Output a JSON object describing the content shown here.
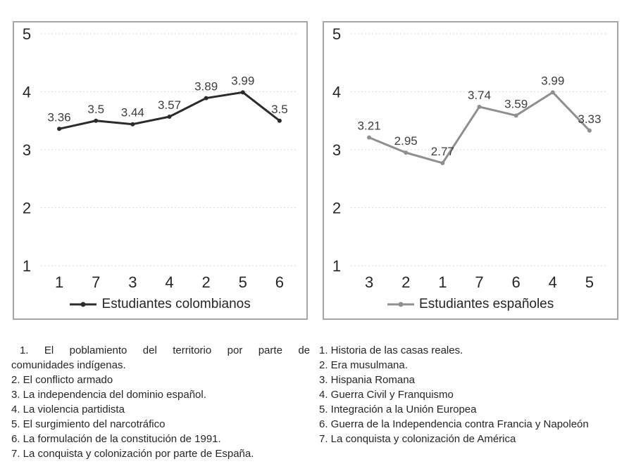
{
  "chart_data": [
    {
      "type": "line",
      "categories": [
        "1",
        "7",
        "3",
        "4",
        "2",
        "5",
        "6"
      ],
      "series": [
        {
          "name": "Estudiantes colombianos",
          "values": [
            3.36,
            3.5,
            3.44,
            3.57,
            3.89,
            3.99,
            3.5
          ]
        }
      ],
      "data_labels": [
        "3.36",
        "3.5",
        "3.44",
        "3.57",
        "3.89",
        "3.99",
        "3.5"
      ],
      "y_ticks": [
        5,
        4,
        3,
        2,
        1
      ],
      "ylim": [
        0.6,
        5.2
      ],
      "grid": true,
      "legend_position": "bottom",
      "line_color": "#2b2b2b"
    },
    {
      "type": "line",
      "categories": [
        "3",
        "2",
        "1",
        "7",
        "6",
        "4",
        "5"
      ],
      "series": [
        {
          "name": "Estudiantes españoles",
          "values": [
            3.21,
            2.95,
            2.77,
            3.74,
            3.59,
            3.99,
            3.33
          ]
        }
      ],
      "data_labels": [
        "3.21",
        "2.95",
        "2.77",
        "3.74",
        "3.59",
        "3.99",
        "3.33"
      ],
      "y_ticks": [
        5,
        4,
        3,
        2,
        1
      ],
      "ylim": [
        0.6,
        5.2
      ],
      "grid": true,
      "legend_position": "bottom",
      "line_color": "#8f8f8f"
    }
  ],
  "notes": {
    "left_lines": [
      "1. El poblamiento del territorio por parte de",
      "comunidades indígenas.",
      "2. El conflicto armado",
      "3. La independencia del dominio español.",
      "4. La violencia partidista",
      "5. El surgimiento del narcotráfico",
      "6. La formulación de la constitución de 1991.",
      "7. La conquista y colonización por parte de España."
    ],
    "right_lines": [
      "1. Historia de las casas reales.",
      "2. Era musulmana.",
      "3. Hispania Romana",
      "4. Guerra Civil y Franquismo",
      "5. Integración a la Unión Europea",
      "6. Guerra de la Independencia contra Francia y Napoleón",
      "7. La conquista y colonización de América"
    ]
  },
  "colors": {
    "grid": "#d9d9d9",
    "tick_text": "#262626",
    "data_label": "#3d3d3d",
    "panel_border": "#a6a6a6"
  }
}
